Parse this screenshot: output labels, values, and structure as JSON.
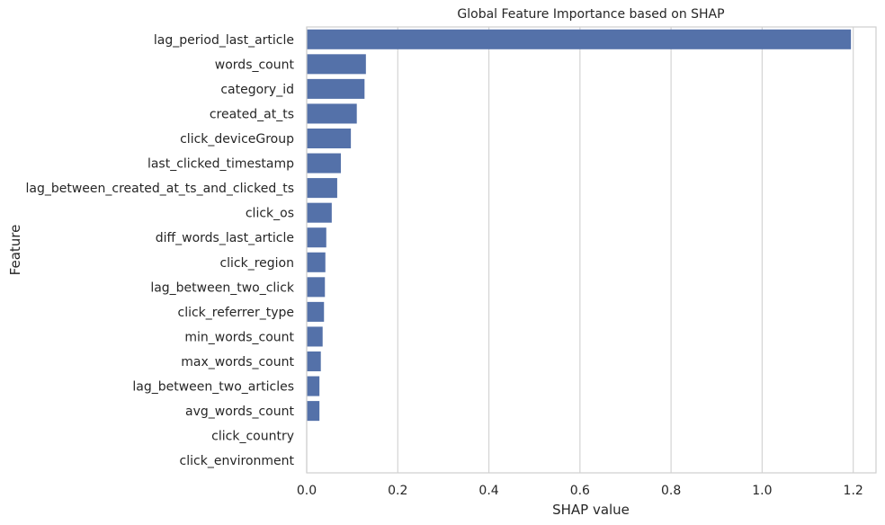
{
  "chart_data": {
    "type": "bar",
    "orientation": "horizontal",
    "title": "Global Feature Importance based on SHAP",
    "xlabel": "SHAP value",
    "ylabel": "Feature",
    "xlim": [
      0,
      1.25
    ],
    "xticks": [
      0.0,
      0.2,
      0.4,
      0.6,
      0.8,
      1.0,
      1.2
    ],
    "xtick_labels": [
      "0.0",
      "0.2",
      "0.4",
      "0.6",
      "0.8",
      "1.0",
      "1.2"
    ],
    "grid": "vertical",
    "bar_color": "#5471a9",
    "categories": [
      "lag_period_last_article",
      "words_count",
      "category_id",
      "created_at_ts",
      "click_deviceGroup",
      "last_clicked_timestamp",
      "lag_between_created_at_ts_and_clicked_ts",
      "click_os",
      "diff_words_last_article",
      "click_region",
      "lag_between_two_click",
      "click_referrer_type",
      "min_words_count",
      "max_words_count",
      "lag_between_two_articles",
      "avg_words_count",
      "click_country",
      "click_environment"
    ],
    "values": [
      1.195,
      0.13,
      0.127,
      0.11,
      0.097,
      0.075,
      0.067,
      0.055,
      0.043,
      0.041,
      0.04,
      0.038,
      0.035,
      0.031,
      0.028,
      0.028,
      0.001,
      0.001
    ]
  }
}
